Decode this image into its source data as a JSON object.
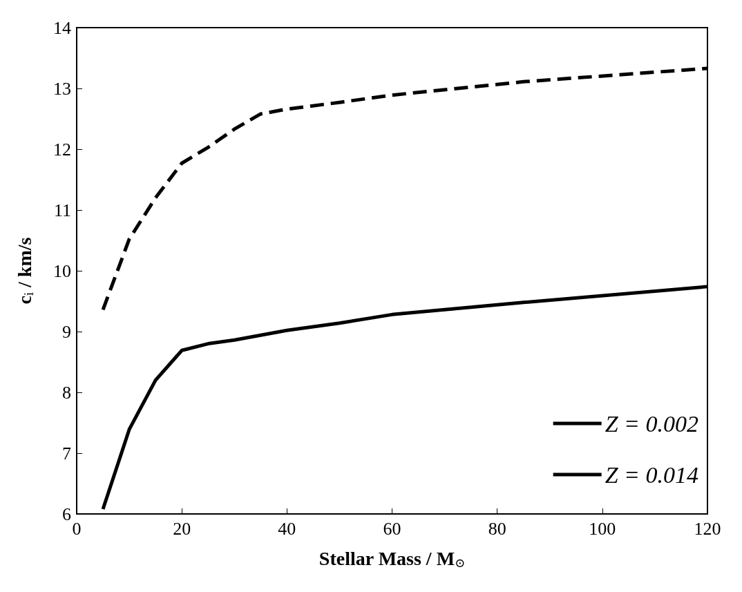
{
  "chart_data": {
    "type": "line",
    "xlabel": "Stellar Mass / M$_{⊙}$",
    "ylabel": "c$_{i}$ / km/s",
    "xlim": [
      0,
      120
    ],
    "xticks": [
      0,
      20,
      40,
      60,
      80,
      100,
      120
    ],
    "ylim": [
      6,
      14
    ],
    "yticks": [
      6,
      7,
      8,
      9,
      10,
      11,
      12,
      13,
      14
    ],
    "grid": false,
    "legend": "bottom right",
    "marker": "none",
    "series": [
      {
        "name": "Z = 0.002",
        "color": "#000000",
        "line_style": "dashed",
        "x": [
          5,
          10,
          15,
          20,
          25,
          30,
          35,
          40,
          50,
          60,
          85,
          120
        ],
        "values": [
          9.36,
          10.52,
          11.2,
          11.77,
          12.03,
          12.33,
          12.58,
          12.66,
          12.77,
          12.89,
          13.11,
          13.33
        ]
      },
      {
        "name": "Z = 0.014",
        "color": "#000000",
        "line_style": "solid",
        "x": [
          5,
          10,
          15,
          20,
          25,
          30,
          35,
          40,
          45,
          50,
          60,
          85,
          120
        ],
        "values": [
          6.08,
          7.39,
          8.2,
          8.69,
          8.8,
          8.86,
          8.94,
          9.02,
          9.08,
          9.14,
          9.28,
          9.48,
          9.74
        ]
      }
    ]
  }
}
